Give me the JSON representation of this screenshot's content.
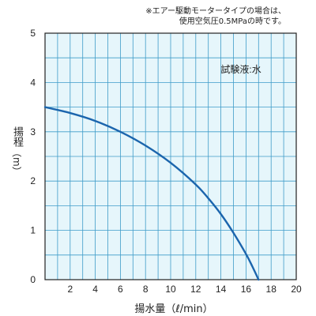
{
  "note": {
    "line1": "※エアー駆動モータータイプの場合は、",
    "line2": "使用空気圧0.5MPaの時です。"
  },
  "colors": {
    "plot_background": "#e6f6fb",
    "grid": "#3f9cc9",
    "curve": "#1b65ad",
    "axis": "#222222"
  },
  "chart_data": {
    "type": "line",
    "title": "",
    "xlabel": "揚水量（ℓ/min）",
    "ylabel": "揚程",
    "ylabel_unit": "（m）",
    "annotation": "試験液:水",
    "xlim": [
      0,
      20
    ],
    "ylim": [
      0,
      5
    ],
    "xticks": [
      2,
      4,
      6,
      8,
      10,
      12,
      14,
      16,
      18,
      20
    ],
    "yticks": [
      0,
      1,
      2,
      3,
      4,
      5
    ],
    "grid": true,
    "series": [
      {
        "x": [
          0,
          2,
          4,
          6,
          8,
          10,
          12,
          13,
          14,
          15,
          16,
          16.5,
          17
        ],
        "y": [
          3.5,
          3.38,
          3.22,
          3.0,
          2.72,
          2.37,
          1.93,
          1.65,
          1.33,
          0.95,
          0.52,
          0.27,
          0.0
        ]
      }
    ]
  }
}
